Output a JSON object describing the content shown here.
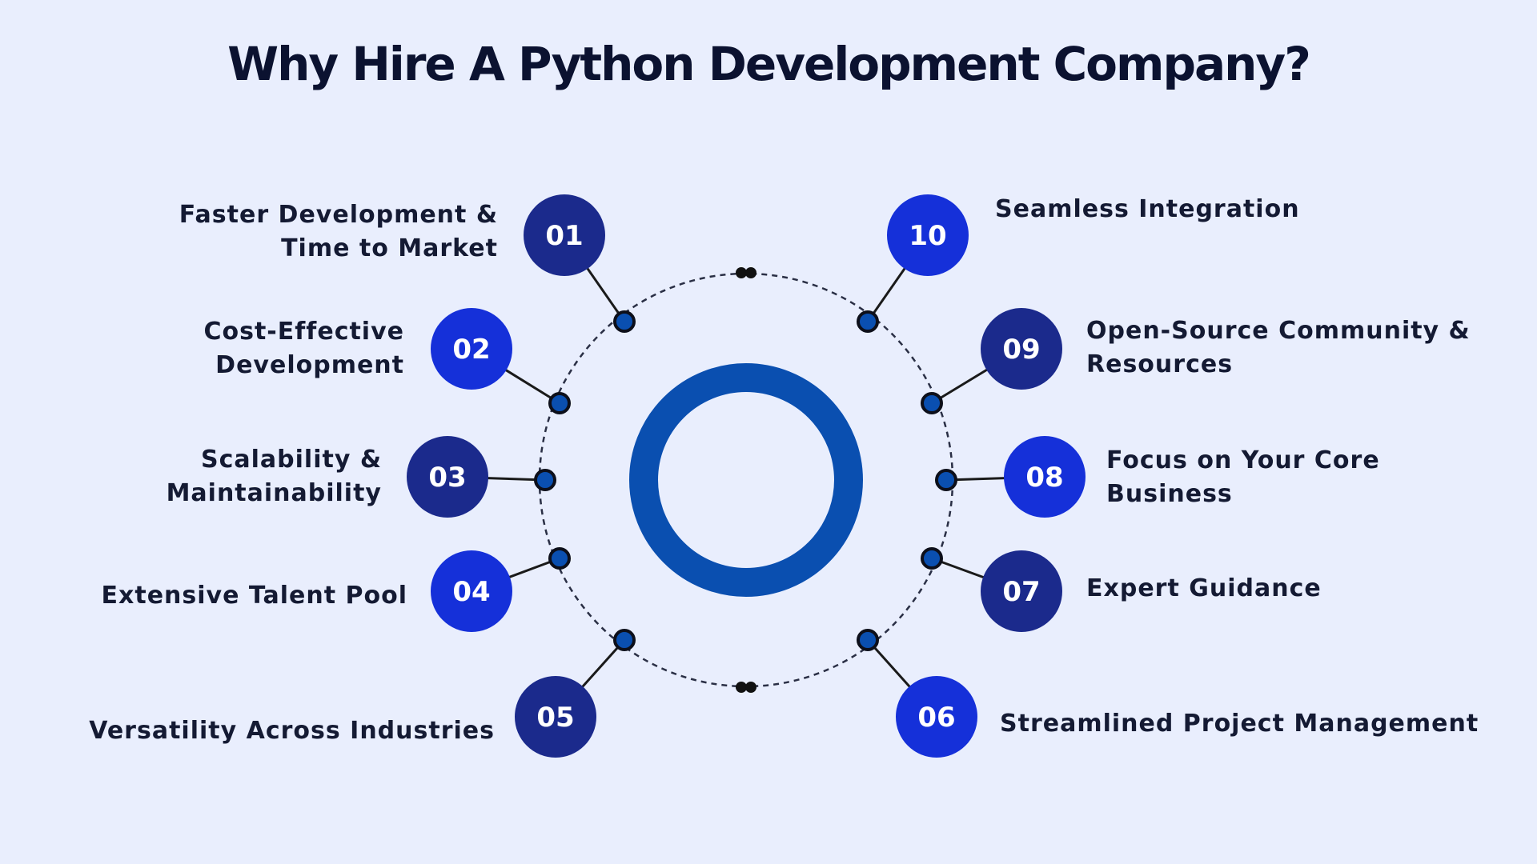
{
  "title": "Why Hire A Python Development Company?",
  "colors": {
    "background": "#e9eefd",
    "badge_dark": "#1b2a8c",
    "badge_bright": "#1530d9",
    "ring": "#0a4fb0",
    "connector": "#1a1a1a"
  },
  "items": [
    {
      "number": "01",
      "lines": [
        "Faster Development &",
        "Time to Market"
      ],
      "style": "dark"
    },
    {
      "number": "02",
      "lines": [
        "Cost-Effective",
        "Development"
      ],
      "style": "bright"
    },
    {
      "number": "03",
      "lines": [
        "Scalability &",
        "Maintainability"
      ],
      "style": "dark"
    },
    {
      "number": "04",
      "lines": [
        "Extensive Talent Pool"
      ],
      "style": "bright"
    },
    {
      "number": "05",
      "lines": [
        "Versatility Across Industries"
      ],
      "style": "dark"
    },
    {
      "number": "06",
      "lines": [
        "Streamlined Project Management"
      ],
      "style": "bright"
    },
    {
      "number": "07",
      "lines": [
        "Expert Guidance"
      ],
      "style": "dark"
    },
    {
      "number": "08",
      "lines": [
        "Focus on Your Core",
        "Business"
      ],
      "style": "bright"
    },
    {
      "number": "09",
      "lines": [
        "Open-Source Community &",
        "Resources"
      ],
      "style": "dark"
    },
    {
      "number": "10",
      "lines": [
        "Seamless Integration"
      ],
      "style": "bright"
    }
  ]
}
